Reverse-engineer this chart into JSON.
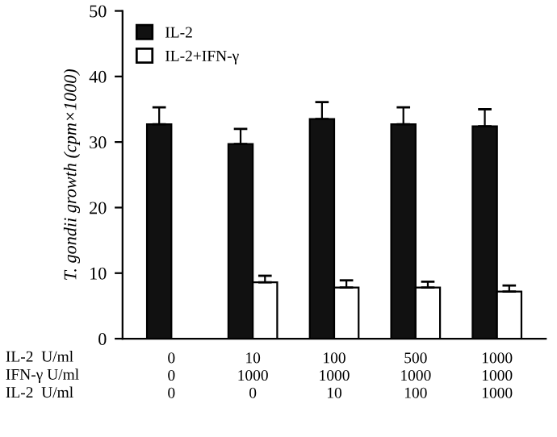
{
  "chart_data": {
    "type": "bar",
    "ylabel": "T. gondii growth (cpm×1000)",
    "categories": [
      "0\n0\n0",
      "10\n1000\n0",
      "100\n1000\n10",
      "500\n1000\n100",
      "1000\n1000\n1000"
    ],
    "series": [
      {
        "name": "IL-2",
        "color": "#111111",
        "values": [
          32.7,
          29.7,
          33.5,
          32.7,
          32.4
        ],
        "errors": [
          [
            32.7,
            35.3
          ],
          [
            29.7,
            32.0
          ],
          [
            33.5,
            36.1
          ],
          [
            32.7,
            35.3
          ],
          [
            32.4,
            35.0
          ]
        ]
      },
      {
        "name": "IL-2+IFN-γ",
        "color": "#ffffff",
        "values": [
          null,
          8.6,
          7.8,
          7.8,
          7.2
        ],
        "errors": [
          null,
          [
            8.6,
            9.6
          ],
          [
            7.8,
            8.9
          ],
          [
            7.8,
            8.7
          ],
          [
            7.2,
            8.1
          ]
        ]
      }
    ],
    "annotations": [
      "IL-2  U/ml",
      "IFN-γ U/ml",
      "IL-2  U/ml"
    ],
    "ylim": [
      0,
      50
    ],
    "yticks": [
      0,
      10,
      20,
      30,
      40,
      50
    ],
    "grid": false,
    "legend": "top left"
  }
}
